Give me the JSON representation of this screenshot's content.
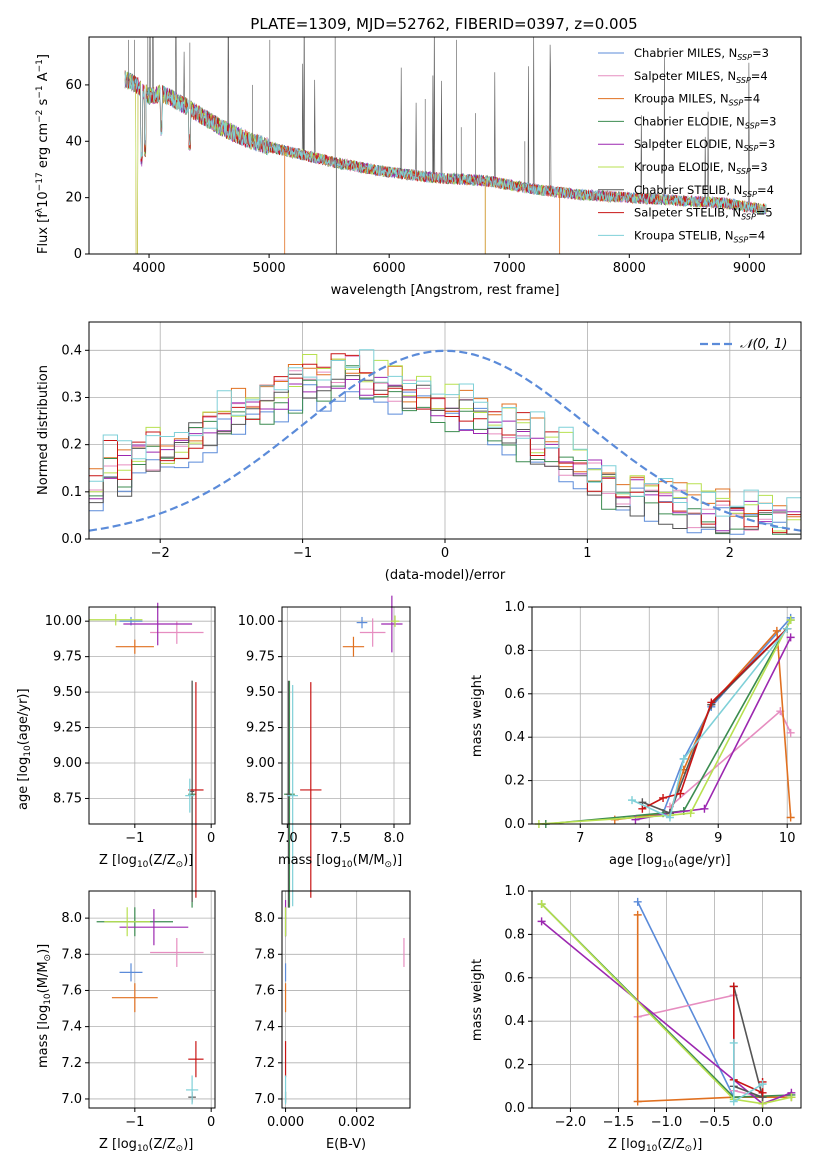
{
  "title": "PLATE=1309, MJD=52762, FIBERID=0397, z=0.005",
  "colors": [
    "#6a8fd8",
    "#e887bd",
    "#c88a10",
    "#3c8c50",
    "#9c27b0",
    "#e0e040",
    "#404040",
    "#c81414",
    "#7fd0d8"
  ],
  "series_colors_lines": [
    "#5b8bd9",
    "#e68dc0",
    "#e07020",
    "#3c8c50",
    "#9c27b0",
    "#b8e050",
    "#555555",
    "#c81414",
    "#7fd0d8"
  ],
  "legend": [
    {
      "prefix": "Chabrier MILES, N",
      "sub": "SSP",
      "suffix": "=3"
    },
    {
      "prefix": "Salpeter MILES, N",
      "sub": "SSP",
      "suffix": "=4"
    },
    {
      "prefix": "Kroupa MILES, N",
      "sub": "SSP",
      "suffix": "=4"
    },
    {
      "prefix": "Chabrier ELODIE, N",
      "sub": "SSP",
      "suffix": "=3"
    },
    {
      "prefix": "Salpeter ELODIE, N",
      "sub": "SSP",
      "suffix": "=3"
    },
    {
      "prefix": "Kroupa ELODIE, N",
      "sub": "SSP",
      "suffix": "=3"
    },
    {
      "prefix": "Chabrier STELIB, N",
      "sub": "SSP",
      "suffix": "=4"
    },
    {
      "prefix": "Salpeter STELIB, N",
      "sub": "SSP",
      "suffix": "=5"
    },
    {
      "prefix": "Kroupa STELIB, N",
      "sub": "SSP",
      "suffix": "=4"
    }
  ],
  "chart_data": [
    {
      "type": "line",
      "panel": "spectrum",
      "xlabel": "wavelength [Angstrom, rest frame]",
      "ylabel_parts": [
        "Flux [f",
        "λ",
        "10",
        "−17",
        " erg cm",
        "−2",
        " s",
        "−1",
        " A",
        "−1",
        "]"
      ],
      "xlim": [
        3500,
        9430
      ],
      "ylim": [
        0,
        77
      ],
      "xticks": [
        4000,
        5000,
        6000,
        7000,
        8000,
        9000
      ],
      "yticks": [
        0,
        20,
        40,
        60
      ],
      "continuum": {
        "x": [
          3800,
          3900,
          4000,
          4100,
          4200,
          4400,
          4600,
          4800,
          5000,
          5300,
          5600,
          6000,
          6400,
          6800,
          7200,
          7600,
          8000,
          8400,
          8800,
          9100
        ],
        "y": [
          62,
          60,
          56,
          57,
          55,
          50,
          45,
          41,
          38,
          35,
          32,
          29,
          27,
          26,
          23,
          21,
          20,
          19,
          18,
          16
        ]
      }
    },
    {
      "type": "bar",
      "panel": "residual-histogram",
      "xlabel": "(data-model)/error",
      "ylabel": "Normed distribution",
      "xlim": [
        -2.5,
        2.5
      ],
      "ylim": [
        0,
        0.46
      ],
      "xticks": [
        -2,
        -1,
        0,
        1,
        2
      ],
      "yticks": [
        0.0,
        0.1,
        0.2,
        0.3,
        0.4
      ],
      "gaussian_label": "𝒩(0, 1)",
      "bin_centers": [
        -2.45,
        -2.35,
        -2.25,
        -2.15,
        -2.05,
        -1.95,
        -1.85,
        -1.75,
        -1.65,
        -1.55,
        -1.45,
        -1.35,
        -1.25,
        -1.15,
        -1.05,
        -0.95,
        -0.85,
        -0.75,
        -0.65,
        -0.55,
        -0.45,
        -0.35,
        -0.25,
        -0.15,
        -0.05,
        0.05,
        0.15,
        0.25,
        0.35,
        0.45,
        0.55,
        0.65,
        0.75,
        0.85,
        0.95,
        1.05,
        1.15,
        1.25,
        1.35,
        1.45,
        1.55,
        1.65,
        1.75,
        1.85,
        1.95,
        2.05,
        2.15,
        2.25,
        2.35,
        2.45
      ],
      "base_profile": [
        0.12,
        0.16,
        0.14,
        0.17,
        0.18,
        0.16,
        0.2,
        0.22,
        0.24,
        0.25,
        0.27,
        0.28,
        0.29,
        0.3,
        0.32,
        0.34,
        0.33,
        0.35,
        0.36,
        0.34,
        0.33,
        0.32,
        0.31,
        0.3,
        0.29,
        0.28,
        0.27,
        0.26,
        0.24,
        0.23,
        0.22,
        0.2,
        0.19,
        0.17,
        0.15,
        0.13,
        0.12,
        0.1,
        0.09,
        0.09,
        0.08,
        0.07,
        0.06,
        0.06,
        0.05,
        0.05,
        0.04,
        0.04,
        0.03,
        0.03
      ]
    },
    {
      "type": "scatter",
      "panel": "age-vs-Z",
      "xlabel_parts": [
        "Z [log",
        "10",
        "(Z/Z",
        "⊙",
        ")]"
      ],
      "ylabel_parts": [
        "age  [log",
        "10",
        "(age/yr)]"
      ],
      "xlim": [
        -1.6,
        0.05
      ],
      "ylim": [
        8.57,
        10.1
      ],
      "xticks": [
        -1,
        0
      ],
      "yticks": [
        8.75,
        9.0,
        9.25,
        9.5,
        9.75,
        10.0
      ],
      "points": [
        {
          "x": -1.05,
          "y": 10.0,
          "xerr": 0.15,
          "yerr": 0.03,
          "c": 0
        },
        {
          "x": -0.45,
          "y": 9.92,
          "xerr": 0.35,
          "yerr": 0.08,
          "c": 1
        },
        {
          "x": -1.0,
          "y": 9.82,
          "xerr": 0.25,
          "yerr": 0.05,
          "c": 2
        },
        {
          "x": -0.25,
          "y": 8.78,
          "xerr": 0.05,
          "yerr": 0.8,
          "c": 3
        },
        {
          "x": -0.7,
          "y": 9.98,
          "xerr": 0.45,
          "yerr": 0.15,
          "c": 4
        },
        {
          "x": -1.25,
          "y": 10.01,
          "xerr": 0.35,
          "yerr": 0.04,
          "c": 5
        },
        {
          "x": -0.25,
          "y": 8.8,
          "xerr": 0.03,
          "yerr": 0.78,
          "c": 6
        },
        {
          "x": -0.2,
          "y": 8.81,
          "xerr": 0.1,
          "yerr": 0.76,
          "c": 7
        },
        {
          "x": -0.28,
          "y": 8.77,
          "xerr": 0.06,
          "yerr": 0.12,
          "c": 8
        }
      ]
    },
    {
      "type": "scatter",
      "panel": "age-vs-mass",
      "xlabel_parts": [
        "mass [log",
        "10",
        "(M/M",
        "⊙",
        ")]"
      ],
      "xlim": [
        6.95,
        8.15
      ],
      "ylim": [
        8.57,
        10.1
      ],
      "xticks": [
        7.0,
        7.5,
        8.0
      ],
      "yticks": [
        8.75,
        9.0,
        9.25,
        9.5,
        9.75,
        10.0
      ],
      "points": [
        {
          "x": 7.7,
          "y": 9.99,
          "xerr": 0.05,
          "yerr": 0.04,
          "c": 0
        },
        {
          "x": 7.8,
          "y": 9.92,
          "xerr": 0.12,
          "yerr": 0.1,
          "c": 1
        },
        {
          "x": 7.62,
          "y": 9.82,
          "xerr": 0.1,
          "yerr": 0.07,
          "c": 2
        },
        {
          "x": 7.02,
          "y": 8.78,
          "xerr": 0.05,
          "yerr": 0.8,
          "c": 3
        },
        {
          "x": 7.98,
          "y": 9.98,
          "xerr": 0.1,
          "yerr": 0.2,
          "c": 4
        },
        {
          "x": 8.01,
          "y": 10.0,
          "xerr": 0.04,
          "yerr": 0.04,
          "c": 5
        },
        {
          "x": 7.01,
          "y": 8.78,
          "xerr": 0.02,
          "yerr": 0.8,
          "c": 6
        },
        {
          "x": 7.22,
          "y": 8.81,
          "xerr": 0.1,
          "yerr": 0.76,
          "c": 7
        },
        {
          "x": 7.05,
          "y": 8.77,
          "xerr": 0.05,
          "yerr": 0.78,
          "c": 8
        }
      ]
    },
    {
      "type": "line",
      "panel": "mass-weight-vs-age",
      "xlabel_parts": [
        "age  [log",
        "10",
        "(age/yr)]"
      ],
      "ylabel": "mass weight",
      "xlim": [
        6.3,
        10.2
      ],
      "ylim": [
        0,
        1.0
      ],
      "xticks": [
        7,
        8,
        9,
        10
      ],
      "yticks": [
        0.0,
        0.2,
        0.4,
        0.6,
        0.8,
        1.0
      ],
      "series": [
        {
          "c": 0,
          "x": [
            8.2,
            8.5,
            8.9,
            10.05
          ],
          "y": [
            0.05,
            0.3,
            0.54,
            0.95
          ]
        },
        {
          "c": 1,
          "x": [
            8.3,
            9.9,
            10.05
          ],
          "y": [
            0.08,
            0.52,
            0.42
          ]
        },
        {
          "c": 2,
          "x": [
            7.5,
            8.3,
            8.5,
            8.9,
            9.85,
            10.05
          ],
          "y": [
            0.02,
            0.05,
            0.25,
            0.55,
            0.89,
            0.03
          ]
        },
        {
          "c": 3,
          "x": [
            6.5,
            8.2,
            8.5,
            10.05
          ],
          "y": [
            0.0,
            0.05,
            0.06,
            0.94
          ]
        },
        {
          "c": 4,
          "x": [
            7.8,
            8.3,
            8.8,
            10.05
          ],
          "y": [
            0.02,
            0.05,
            0.07,
            0.86
          ]
        },
        {
          "c": 5,
          "x": [
            6.4,
            8.3,
            8.6,
            10.05
          ],
          "y": [
            0.0,
            0.04,
            0.05,
            0.94
          ]
        },
        {
          "c": 6,
          "x": [
            7.9,
            8.3,
            8.9,
            10.0
          ],
          "y": [
            0.1,
            0.05,
            0.55,
            0.9
          ]
        },
        {
          "c": 7,
          "x": [
            7.9,
            8.2,
            8.45,
            8.9,
            10.0
          ],
          "y": [
            0.07,
            0.12,
            0.14,
            0.56,
            0.9
          ]
        },
        {
          "c": 8,
          "x": [
            7.75,
            8.3,
            8.5,
            10.0
          ],
          "y": [
            0.11,
            0.03,
            0.3,
            0.9
          ]
        }
      ]
    },
    {
      "type": "scatter",
      "panel": "mass-vs-Z",
      "xlabel_parts": [
        "Z [log",
        "10",
        "(Z/Z",
        "⊙",
        ")]"
      ],
      "ylabel_parts": [
        "mass [log",
        "10",
        "(M/M",
        "⊙",
        ")]"
      ],
      "xlim": [
        -1.6,
        0.05
      ],
      "ylim": [
        6.95,
        8.15
      ],
      "xticks": [
        -1,
        0
      ],
      "yticks": [
        7.0,
        7.2,
        7.4,
        7.6,
        7.8,
        8.0
      ],
      "points": [
        {
          "x": -1.05,
          "y": 7.7,
          "xerr": 0.15,
          "yerr": 0.05,
          "c": 0
        },
        {
          "x": -0.45,
          "y": 7.81,
          "xerr": 0.35,
          "yerr": 0.08,
          "c": 1
        },
        {
          "x": -1.0,
          "y": 7.56,
          "xerr": 0.3,
          "yerr": 0.08,
          "c": 2
        },
        {
          "x": -1.0,
          "y": 7.98,
          "xerr": 0.5,
          "yerr": 0.08,
          "c": 3
        },
        {
          "x": -0.75,
          "y": 7.95,
          "xerr": 0.45,
          "yerr": 0.1,
          "c": 4
        },
        {
          "x": -1.1,
          "y": 7.98,
          "xerr": 0.3,
          "yerr": 0.08,
          "c": 5
        },
        {
          "x": -0.25,
          "y": 7.01,
          "xerr": 0.05,
          "yerr": 0.03,
          "c": 6
        },
        {
          "x": -0.2,
          "y": 7.22,
          "xerr": 0.1,
          "yerr": 0.1,
          "c": 7
        },
        {
          "x": -0.25,
          "y": 7.05,
          "xerr": 0.08,
          "yerr": 0.08,
          "c": 8
        }
      ]
    },
    {
      "type": "scatter",
      "panel": "mass-vs-EBV",
      "xlabel": "E(B-V)",
      "xlim": [
        -0.0001,
        0.0035
      ],
      "ylim": [
        6.95,
        8.15
      ],
      "xticks_labels": [
        "0.000",
        "0.002"
      ],
      "xticks": [
        0.0,
        0.002
      ],
      "yticks": [
        7.0,
        7.2,
        7.4,
        7.6,
        7.8,
        8.0
      ],
      "points": [
        {
          "x": 0.0,
          "y": 7.7,
          "xerr": 0,
          "yerr": 0.05,
          "c": 0
        },
        {
          "x": 0.00333,
          "y": 7.81,
          "xerr": 0,
          "yerr": 0.08,
          "c": 1
        },
        {
          "x": 0.0,
          "y": 7.56,
          "xerr": 0,
          "yerr": 0.08,
          "c": 2
        },
        {
          "x": 0.0,
          "y": 7.98,
          "xerr": 0,
          "yerr": 0.08,
          "c": 3
        },
        {
          "x": 0.0,
          "y": 8.0,
          "xerr": 0,
          "yerr": 0.1,
          "c": 4
        },
        {
          "x": 0.0,
          "y": 7.98,
          "xerr": 0,
          "yerr": 0.08,
          "c": 5
        },
        {
          "x": 0.0,
          "y": 7.01,
          "xerr": 0,
          "yerr": 0.03,
          "c": 6
        },
        {
          "x": 0.0,
          "y": 7.22,
          "xerr": 0,
          "yerr": 0.1,
          "c": 7
        },
        {
          "x": 0.0,
          "y": 7.05,
          "xerr": 0,
          "yerr": 0.08,
          "c": 8
        }
      ]
    },
    {
      "type": "line",
      "panel": "mass-weight-vs-Z",
      "xlabel_parts": [
        "Z [log",
        "10",
        "(Z/Z",
        "⊙",
        ")]"
      ],
      "ylabel": "mass weight",
      "xlim": [
        -2.4,
        0.4
      ],
      "ylim": [
        0,
        1.0
      ],
      "xticks": [
        -2.0,
        -1.5,
        -1.0,
        -0.5,
        0.0
      ],
      "yticks": [
        0.0,
        0.2,
        0.4,
        0.6,
        0.8,
        1.0
      ],
      "series": [
        {
          "c": 0,
          "x": [
            -1.3,
            -0.3,
            0.0,
            0.3
          ],
          "y": [
            0.95,
            0.05,
            0.05,
            0.05
          ]
        },
        {
          "c": 1,
          "x": [
            -1.3,
            -0.3,
            -0.3,
            0.0
          ],
          "y": [
            0.42,
            0.52,
            0.08,
            0.05
          ]
        },
        {
          "c": 2,
          "x": [
            -1.3,
            -1.3,
            -0.3,
            0.0,
            0.3
          ],
          "y": [
            0.89,
            0.03,
            0.05,
            0.05,
            0.05
          ]
        },
        {
          "c": 3,
          "x": [
            -2.3,
            -0.3,
            0.3
          ],
          "y": [
            0.94,
            0.05,
            0.06
          ]
        },
        {
          "c": 4,
          "x": [
            -2.3,
            0.0,
            0.3
          ],
          "y": [
            0.86,
            0.02,
            0.07
          ]
        },
        {
          "c": 5,
          "x": [
            -2.3,
            -0.3,
            0.0,
            0.3
          ],
          "y": [
            0.94,
            0.04,
            0.02,
            0.05
          ]
        },
        {
          "c": 6,
          "x": [
            -0.3,
            0.0,
            -0.3
          ],
          "y": [
            0.1,
            0.05,
            0.56
          ]
        },
        {
          "c": 7,
          "x": [
            -0.3,
            -0.3,
            0.0,
            0.0
          ],
          "y": [
            0.56,
            0.13,
            0.07,
            0.12
          ]
        },
        {
          "c": 8,
          "x": [
            -0.3,
            -0.3,
            0.0
          ],
          "y": [
            0.3,
            0.03,
            0.11
          ]
        }
      ]
    }
  ]
}
